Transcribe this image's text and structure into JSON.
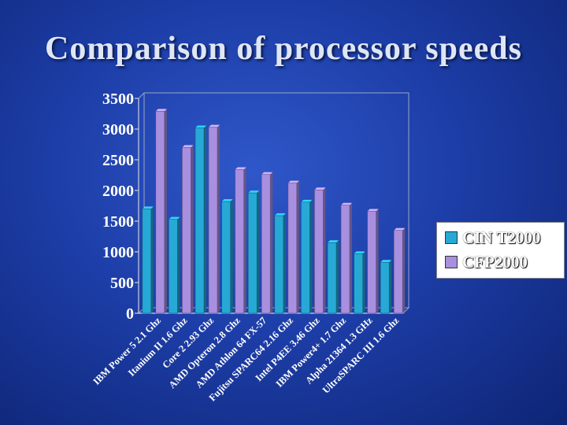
{
  "slide": {
    "title": "Comparison of processor speeds"
  },
  "chart_data": {
    "type": "bar",
    "ylim": [
      0,
      3500
    ],
    "yticks": [
      "0",
      "500",
      "1000",
      "1500",
      "2000",
      "2500",
      "3000",
      "3500"
    ],
    "categories": [
      "IBM Power 5 2.1 Ghz",
      "Itanium II 1.6 Ghz",
      "Core 2 2.93 Ghz",
      "AMD Opteron 2.8 Ghz",
      "AMD Athlon 64 FX-57",
      "Fujitsu SPARC64 2.16 Ghz",
      "Intel P4EE 3.46 Ghz",
      "IBM Power4+ 1.7 Ghz",
      "Alpha 21364 1.3 GHz",
      "UltraSPARC III 1.6 Ghz"
    ],
    "series": [
      {
        "name": "CIN T2000",
        "color": "#27a9d6",
        "values": [
          1700,
          1530,
          3020,
          1820,
          1960,
          1590,
          1810,
          1150,
          970,
          830
        ]
      },
      {
        "name": "CFP2000",
        "color": "#a88fe0",
        "values": [
          3290,
          2700,
          3030,
          2340,
          2260,
          2120,
          2010,
          1760,
          1660,
          1350
        ]
      }
    ],
    "legend": "right",
    "grid": false
  }
}
